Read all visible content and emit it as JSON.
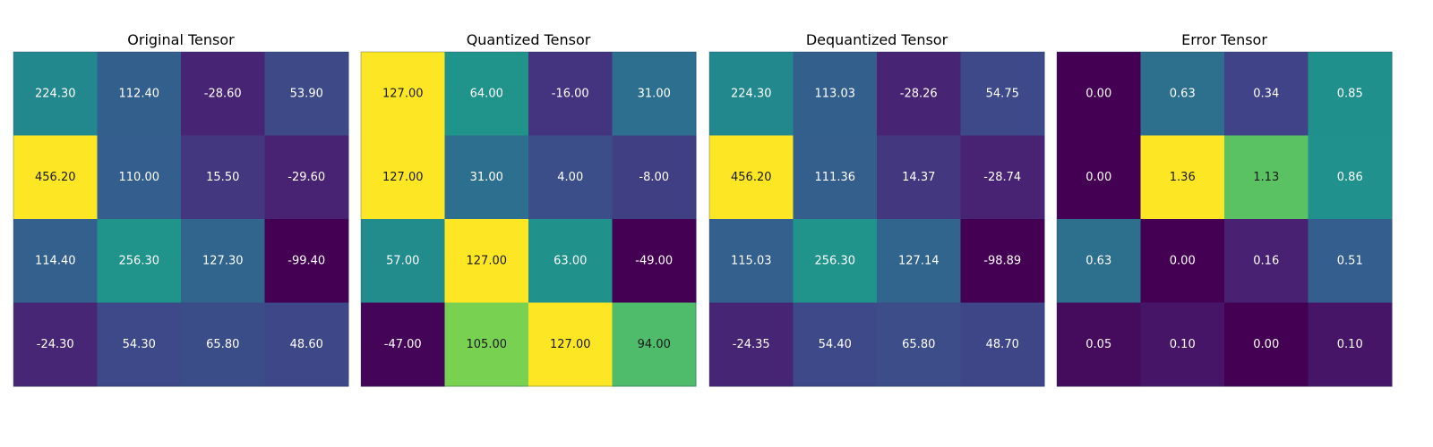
{
  "chart_data": [
    {
      "type": "heatmap",
      "title": "Original Tensor",
      "colormap": "viridis",
      "value_format": "2 decimals",
      "values": [
        [
          224.3,
          112.4,
          -28.6,
          53.9
        ],
        [
          456.2,
          110.0,
          15.5,
          -29.6
        ],
        [
          114.4,
          256.3,
          127.3,
          -99.4
        ],
        [
          -24.3,
          54.3,
          65.8,
          48.6
        ]
      ],
      "labels": [
        [
          "224.30",
          "112.40",
          "-28.60",
          "53.90"
        ],
        [
          "456.20",
          "110.00",
          "15.50",
          "-29.60"
        ],
        [
          "114.40",
          "256.30",
          "127.30",
          "-99.40"
        ],
        [
          "-24.30",
          "54.30",
          "65.80",
          "48.60"
        ]
      ]
    },
    {
      "type": "heatmap",
      "title": "Quantized Tensor",
      "colormap": "viridis",
      "value_format": "2 decimals",
      "values": [
        [
          127.0,
          64.0,
          -16.0,
          31.0
        ],
        [
          127.0,
          31.0,
          4.0,
          -8.0
        ],
        [
          57.0,
          127.0,
          63.0,
          -49.0
        ],
        [
          -47.0,
          105.0,
          127.0,
          94.0
        ]
      ],
      "labels": [
        [
          "127.00",
          "64.00",
          "-16.00",
          "31.00"
        ],
        [
          "127.00",
          "31.00",
          "4.00",
          "-8.00"
        ],
        [
          "57.00",
          "127.00",
          "63.00",
          "-49.00"
        ],
        [
          "-47.00",
          "105.00",
          "127.00",
          "94.00"
        ]
      ]
    },
    {
      "type": "heatmap",
      "title": "Dequantized Tensor",
      "colormap": "viridis",
      "value_format": "2 decimals",
      "values": [
        [
          224.3,
          113.03,
          -28.26,
          54.75
        ],
        [
          456.2,
          111.36,
          14.37,
          -28.74
        ],
        [
          115.03,
          256.3,
          127.14,
          -98.89
        ],
        [
          -24.35,
          54.4,
          65.8,
          48.7
        ]
      ],
      "labels": [
        [
          "224.30",
          "113.03",
          "-28.26",
          "54.75"
        ],
        [
          "456.20",
          "111.36",
          "14.37",
          "-28.74"
        ],
        [
          "115.03",
          "256.30",
          "127.14",
          "-98.89"
        ],
        [
          "-24.35",
          "54.40",
          "65.80",
          "48.70"
        ]
      ]
    },
    {
      "type": "heatmap",
      "title": "Error Tensor",
      "colormap": "viridis",
      "value_format": "2 decimals",
      "values": [
        [
          0.0,
          0.63,
          0.34,
          0.85
        ],
        [
          0.0,
          1.36,
          1.13,
          0.86
        ],
        [
          0.63,
          0.0,
          0.16,
          0.51
        ],
        [
          0.05,
          0.1,
          0.0,
          0.1
        ]
      ],
      "labels": [
        [
          "0.00",
          "0.63",
          "0.34",
          "0.85"
        ],
        [
          "0.00",
          "1.36",
          "1.13",
          "0.86"
        ],
        [
          "0.63",
          "0.00",
          "0.16",
          "0.51"
        ],
        [
          "0.05",
          "0.10",
          "0.00",
          "0.10"
        ]
      ]
    }
  ]
}
